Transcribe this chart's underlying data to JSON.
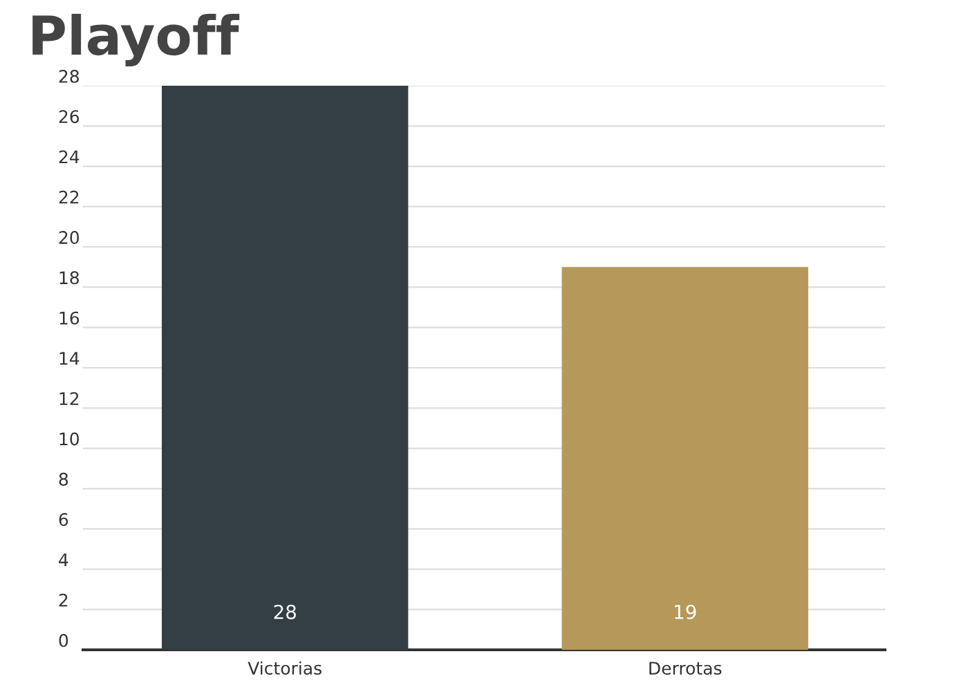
{
  "chart_data": {
    "type": "bar",
    "title": "Playoff",
    "categories": [
      "Victorias",
      "Derrotas"
    ],
    "values": [
      28,
      19
    ],
    "colors": [
      "#343e45",
      "#b5985a"
    ],
    "ylim": [
      0,
      28
    ],
    "yticks": [
      0,
      2,
      4,
      6,
      8,
      10,
      12,
      14,
      16,
      18,
      20,
      22,
      24,
      26,
      28
    ],
    "grid": "y",
    "data_labels": true
  }
}
